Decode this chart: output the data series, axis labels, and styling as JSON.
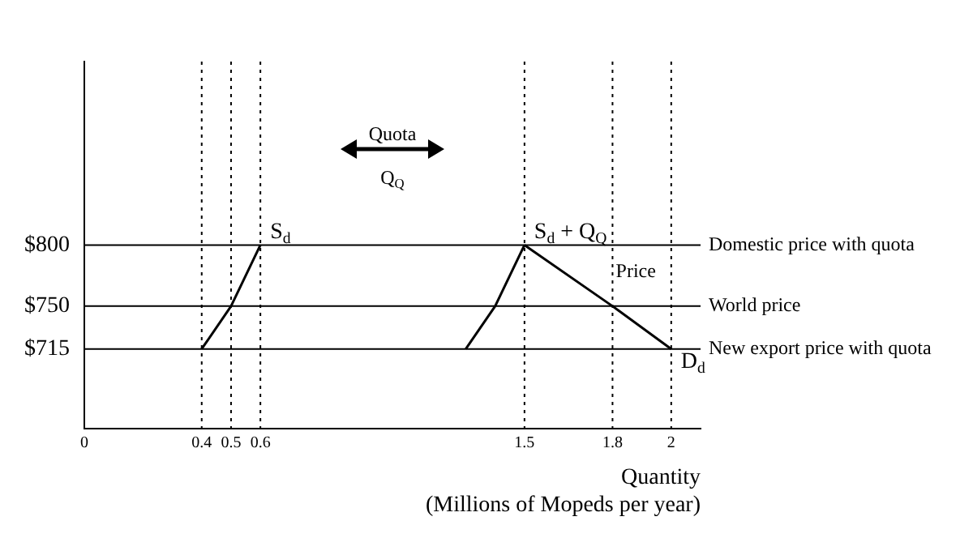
{
  "chart_data": {
    "type": "line",
    "xlabel": "Quantity\n(Millions of Mopeds per year)",
    "xlim": [
      0,
      2.1
    ],
    "xticks": [
      0,
      0.4,
      0.5,
      0.6,
      1.5,
      1.8,
      2.0
    ],
    "ylim": [
      650,
      950
    ],
    "yticks": [
      {
        "value": 715,
        "label": "$715"
      },
      {
        "value": 750,
        "label": "$750"
      },
      {
        "value": 800,
        "label": "$800"
      }
    ],
    "series": [
      {
        "name": "S$_{d}$",
        "color": "#000000",
        "x": [
          0.4,
          0.5,
          0.6
        ],
        "values": [
          715,
          750,
          800
        ]
      },
      {
        "name": "S$_{d}$ + Q$_{Q}$",
        "color": "#000000",
        "x": [
          1.3,
          1.4,
          1.5
        ],
        "values": [
          715,
          750,
          800
        ]
      },
      {
        "name": "D$_{d}$",
        "color": "#000000",
        "x": [
          1.5,
          1.8,
          2.0
        ],
        "values": [
          800,
          750,
          715
        ]
      }
    ],
    "ref_lines": [
      {
        "axis": "y",
        "value": 800,
        "label": "Domestic price with quota"
      },
      {
        "axis": "y",
        "value": 750,
        "label": "World price"
      },
      {
        "axis": "y",
        "value": 715,
        "label": "New export price with quota"
      },
      {
        "axis": "x",
        "value": 0.4,
        "line_style": "dotted"
      },
      {
        "axis": "x",
        "value": 0.5,
        "line_style": "dotted"
      },
      {
        "axis": "x",
        "value": 0.6,
        "line_style": "dotted"
      },
      {
        "axis": "x",
        "value": 1.5,
        "line_style": "dotted"
      },
      {
        "axis": "x",
        "value": 1.8,
        "line_style": "dotted"
      },
      {
        "axis": "x",
        "value": 2.0,
        "line_style": "dotted"
      }
    ],
    "annotations": [
      "Quota",
      "Q$_{Q}$",
      "Price"
    ],
    "grid": false,
    "legend": false,
    "marker": "none",
    "line_style": "solid"
  }
}
